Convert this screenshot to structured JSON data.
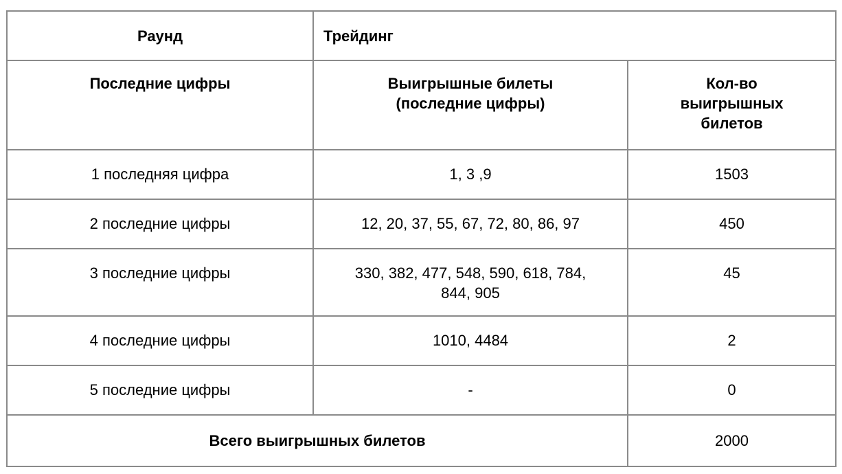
{
  "header": {
    "round_label": "Раунд",
    "round_value": "Трейдинг",
    "columns": [
      "Последние цифры",
      "Выигрышные билеты (последние цифры)",
      "Кол-во выигрышных билетов"
    ]
  },
  "rows": [
    {
      "digits": "1 последняя цифра",
      "tickets": "1, 3 ,9",
      "count": "1503"
    },
    {
      "digits": "2 последние цифры",
      "tickets": "12, 20, 37, 55, 67, 72, 80, 86, 97",
      "count": "450"
    },
    {
      "digits": "3 последние цифры",
      "tickets": "330, 382, 477, 548, 590, 618, 784, 844, 905",
      "count": "45"
    },
    {
      "digits": "4 последние цифры",
      "tickets": "1010, 4484",
      "count": "2"
    },
    {
      "digits": "5 последние цифры",
      "tickets": "-",
      "count": "0"
    }
  ],
  "total": {
    "label": "Всего выигрышных билетов",
    "value": "2000"
  }
}
